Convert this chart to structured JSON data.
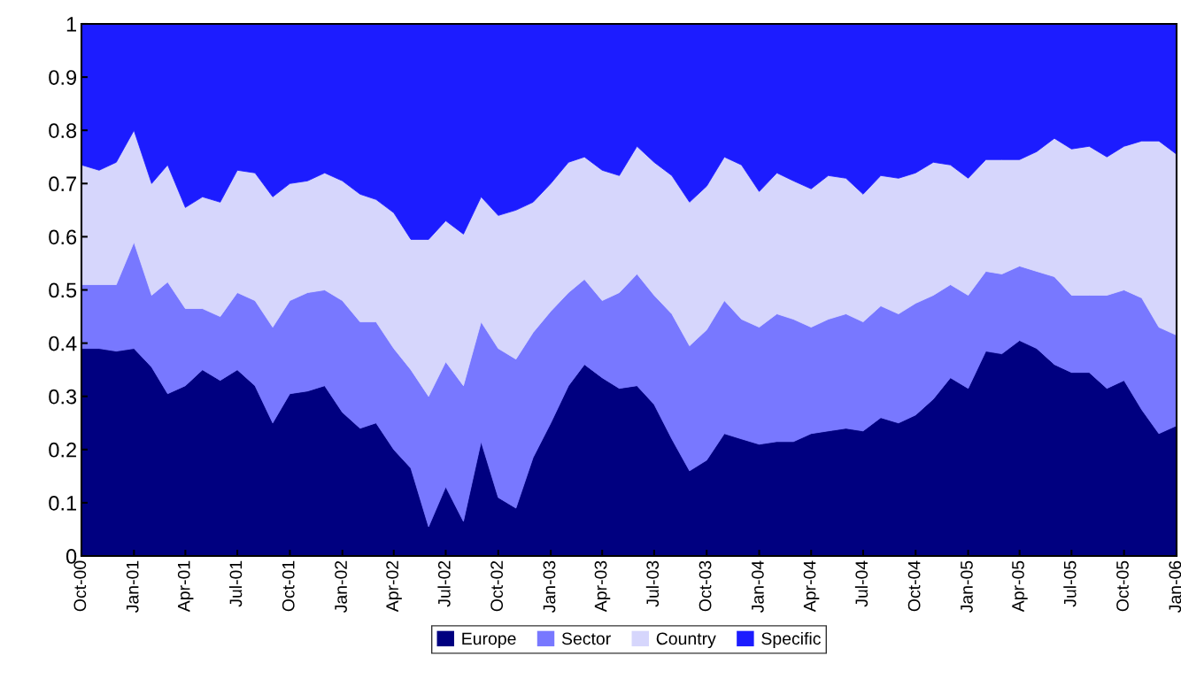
{
  "chart_data": {
    "type": "area",
    "stacked": true,
    "legend": "bottom",
    "grid": false,
    "x": [
      "2000-10",
      "2000-11",
      "2000-12",
      "2001-01",
      "2001-02",
      "2001-03",
      "2001-04",
      "2001-05",
      "2001-06",
      "2001-07",
      "2001-08",
      "2001-09",
      "2001-10",
      "2001-11",
      "2001-12",
      "2002-01",
      "2002-02",
      "2002-03",
      "2002-04",
      "2002-05",
      "2002-06",
      "2002-07",
      "2002-08",
      "2002-09",
      "2002-10",
      "2002-11",
      "2002-12",
      "2003-01",
      "2003-02",
      "2003-03",
      "2003-04",
      "2003-05",
      "2003-06",
      "2003-07",
      "2003-08",
      "2003-09",
      "2003-10",
      "2003-11",
      "2003-12",
      "2004-01",
      "2004-02",
      "2004-03",
      "2004-04",
      "2004-05",
      "2004-06",
      "2004-07",
      "2004-08",
      "2004-09",
      "2004-10",
      "2004-11",
      "2004-12",
      "2005-01",
      "2005-02",
      "2005-03",
      "2005-04",
      "2005-05",
      "2005-06",
      "2005-07",
      "2005-08",
      "2005-09",
      "2005-10",
      "2005-11",
      "2005-12",
      "2006-01"
    ],
    "series": [
      {
        "name": "Europe",
        "color": "#000080",
        "values": [
          0.39,
          0.39,
          0.385,
          0.39,
          0.355,
          0.305,
          0.32,
          0.35,
          0.33,
          0.35,
          0.32,
          0.25,
          0.305,
          0.31,
          0.32,
          0.27,
          0.24,
          0.25,
          0.2,
          0.165,
          0.055,
          0.13,
          0.065,
          0.215,
          0.11,
          0.09,
          0.185,
          0.25,
          0.32,
          0.36,
          0.335,
          0.315,
          0.32,
          0.285,
          0.22,
          0.16,
          0.18,
          0.23,
          0.22,
          0.21,
          0.215,
          0.215,
          0.23,
          0.235,
          0.24,
          0.235,
          0.26,
          0.25,
          0.265,
          0.295,
          0.335,
          0.315,
          0.385,
          0.38,
          0.405,
          0.39,
          0.36,
          0.345,
          0.345,
          0.315,
          0.33,
          0.275,
          0.23,
          0.245
        ]
      },
      {
        "name": "Sector",
        "color": "#7878ff",
        "values": [
          0.12,
          0.12,
          0.125,
          0.2,
          0.135,
          0.21,
          0.145,
          0.115,
          0.12,
          0.145,
          0.16,
          0.18,
          0.175,
          0.185,
          0.18,
          0.21,
          0.2,
          0.19,
          0.19,
          0.185,
          0.245,
          0.235,
          0.255,
          0.225,
          0.28,
          0.28,
          0.235,
          0.21,
          0.175,
          0.16,
          0.145,
          0.18,
          0.21,
          0.205,
          0.235,
          0.235,
          0.245,
          0.25,
          0.225,
          0.22,
          0.24,
          0.23,
          0.2,
          0.21,
          0.215,
          0.205,
          0.21,
          0.205,
          0.21,
          0.195,
          0.175,
          0.175,
          0.15,
          0.15,
          0.14,
          0.145,
          0.165,
          0.145,
          0.145,
          0.175,
          0.17,
          0.21,
          0.2,
          0.17
        ]
      },
      {
        "name": "Country",
        "color": "#d6d6fc",
        "values": [
          0.225,
          0.215,
          0.23,
          0.21,
          0.21,
          0.22,
          0.19,
          0.21,
          0.215,
          0.23,
          0.24,
          0.245,
          0.22,
          0.21,
          0.22,
          0.225,
          0.24,
          0.23,
          0.255,
          0.245,
          0.295,
          0.265,
          0.285,
          0.235,
          0.25,
          0.28,
          0.245,
          0.24,
          0.245,
          0.23,
          0.245,
          0.22,
          0.24,
          0.25,
          0.26,
          0.27,
          0.27,
          0.27,
          0.29,
          0.255,
          0.265,
          0.26,
          0.26,
          0.27,
          0.255,
          0.24,
          0.245,
          0.255,
          0.245,
          0.25,
          0.225,
          0.22,
          0.21,
          0.215,
          0.2,
          0.225,
          0.26,
          0.275,
          0.28,
          0.26,
          0.27,
          0.295,
          0.35,
          0.34
        ]
      },
      {
        "name": "Specific",
        "color": "#1c1cff",
        "values": [
          0.265,
          0.275,
          0.26,
          0.2,
          0.3,
          0.265,
          0.345,
          0.325,
          0.335,
          0.275,
          0.28,
          0.325,
          0.3,
          0.295,
          0.28,
          0.295,
          0.32,
          0.33,
          0.355,
          0.405,
          0.405,
          0.37,
          0.395,
          0.325,
          0.36,
          0.35,
          0.335,
          0.3,
          0.26,
          0.25,
          0.275,
          0.285,
          0.23,
          0.26,
          0.285,
          0.335,
          0.305,
          0.25,
          0.265,
          0.315,
          0.28,
          0.295,
          0.31,
          0.285,
          0.29,
          0.32,
          0.285,
          0.29,
          0.28,
          0.26,
          0.265,
          0.29,
          0.255,
          0.255,
          0.255,
          0.24,
          0.215,
          0.235,
          0.23,
          0.25,
          0.23,
          0.22,
          0.22,
          0.245
        ]
      }
    ],
    "xlim": [
      "2000-10",
      "2006-01"
    ],
    "xticks": [
      {
        "value": "2000-10",
        "label": "Oct-00"
      },
      {
        "value": "2001-01",
        "label": "Jan-01"
      },
      {
        "value": "2001-04",
        "label": "Apr-01"
      },
      {
        "value": "2001-07",
        "label": "Jul-01"
      },
      {
        "value": "2001-10",
        "label": "Oct-01"
      },
      {
        "value": "2002-01",
        "label": "Jan-02"
      },
      {
        "value": "2002-04",
        "label": "Apr-02"
      },
      {
        "value": "2002-07",
        "label": "Jul-02"
      },
      {
        "value": "2002-10",
        "label": "Oct-02"
      },
      {
        "value": "2003-01",
        "label": "Jan-03"
      },
      {
        "value": "2003-04",
        "label": "Apr-03"
      },
      {
        "value": "2003-07",
        "label": "Jul-03"
      },
      {
        "value": "2003-10",
        "label": "Oct-03"
      },
      {
        "value": "2004-01",
        "label": "Jan-04"
      },
      {
        "value": "2004-04",
        "label": "Apr-04"
      },
      {
        "value": "2004-07",
        "label": "Jul-04"
      },
      {
        "value": "2004-10",
        "label": "Oct-04"
      },
      {
        "value": "2005-01",
        "label": "Jan-05"
      },
      {
        "value": "2005-04",
        "label": "Apr-05"
      },
      {
        "value": "2005-07",
        "label": "Jul-05"
      },
      {
        "value": "2005-10",
        "label": "Oct-05"
      },
      {
        "value": "2006-01",
        "label": "Jan-06"
      }
    ],
    "ylim": [
      0,
      1
    ],
    "yticks": [
      0,
      0.1,
      0.2,
      0.3,
      0.4,
      0.5,
      0.6,
      0.7,
      0.8,
      0.9,
      1
    ]
  }
}
